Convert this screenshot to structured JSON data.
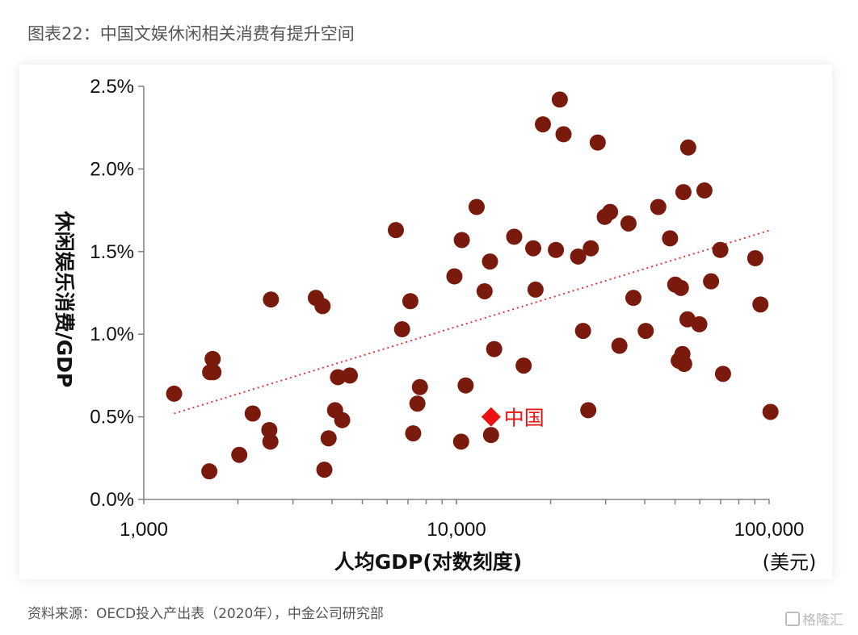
{
  "figure_title": "图表22：中国文娱休闲相关消费有提升空间",
  "source": "资料来源：OECD投入产出表（2020年），中金公司研究部",
  "watermark": "格隆汇",
  "colors": {
    "dot": "#7a1a0c",
    "highlight": "#ee1111",
    "trend": "#e8323c",
    "axis": "#808080"
  },
  "chart_data": {
    "type": "scatter",
    "xlabel": "人均GDP(对数刻度)",
    "xunit": "(美元)",
    "ylabel": "休闲娱乐消费/GDP",
    "xscale": "log",
    "xlim": [
      1000,
      100000
    ],
    "ylim": [
      0,
      2.5
    ],
    "xticks": [
      1000,
      10000,
      100000
    ],
    "xtick_labels": [
      "1,000",
      "10,000",
      "100,000"
    ],
    "yticks": [
      0,
      0.5,
      1.0,
      1.5,
      2.0,
      2.5
    ],
    "ytick_labels": [
      "0.0%",
      "0.5%",
      "1.0%",
      "1.5%",
      "2.0%",
      "2.5%"
    ],
    "trendline": {
      "style": "dotted",
      "from": [
        1250,
        0.52
      ],
      "to": [
        101000,
        1.63
      ]
    },
    "highlight": {
      "label": "中国",
      "x": 12900,
      "y": 0.5
    },
    "points": [
      [
        1250,
        0.64
      ],
      [
        1620,
        0.17
      ],
      [
        1630,
        0.77
      ],
      [
        1660,
        0.85
      ],
      [
        1670,
        0.77
      ],
      [
        2020,
        0.27
      ],
      [
        2230,
        0.52
      ],
      [
        2520,
        0.42
      ],
      [
        2540,
        0.35
      ],
      [
        2550,
        1.21
      ],
      [
        3550,
        1.22
      ],
      [
        3730,
        1.17
      ],
      [
        3780,
        0.18
      ],
      [
        3900,
        0.37
      ],
      [
        4090,
        0.54
      ],
      [
        4180,
        0.74
      ],
      [
        4310,
        0.48
      ],
      [
        4560,
        0.75
      ],
      [
        6400,
        1.63
      ],
      [
        6700,
        1.03
      ],
      [
        7120,
        1.2
      ],
      [
        7270,
        0.4
      ],
      [
        7500,
        0.58
      ],
      [
        7640,
        0.68
      ],
      [
        9850,
        1.35
      ],
      [
        10400,
        1.57
      ],
      [
        10350,
        0.35
      ],
      [
        10700,
        0.69
      ],
      [
        11600,
        1.77
      ],
      [
        12300,
        1.26
      ],
      [
        12800,
        1.44
      ],
      [
        12900,
        0.39
      ],
      [
        13200,
        0.91
      ],
      [
        15300,
        1.59
      ],
      [
        16400,
        0.81
      ],
      [
        17600,
        1.52
      ],
      [
        17900,
        1.27
      ],
      [
        18900,
        2.27
      ],
      [
        20800,
        1.51
      ],
      [
        21400,
        2.42
      ],
      [
        22000,
        2.21
      ],
      [
        24500,
        1.47
      ],
      [
        25400,
        1.02
      ],
      [
        26400,
        0.54
      ],
      [
        26900,
        1.52
      ],
      [
        28300,
        2.16
      ],
      [
        29800,
        1.71
      ],
      [
        31000,
        1.74
      ],
      [
        33200,
        0.93
      ],
      [
        35500,
        1.67
      ],
      [
        36800,
        1.22
      ],
      [
        40300,
        1.02
      ],
      [
        44200,
        1.77
      ],
      [
        48200,
        1.58
      ],
      [
        50100,
        1.3
      ],
      [
        51400,
        0.84
      ],
      [
        52200,
        1.28
      ],
      [
        52800,
        0.88
      ],
      [
        53200,
        1.86
      ],
      [
        53500,
        0.82
      ],
      [
        54800,
        1.09
      ],
      [
        55100,
        2.13
      ],
      [
        59800,
        1.06
      ],
      [
        62100,
        1.87
      ],
      [
        65200,
        1.32
      ],
      [
        69800,
        1.51
      ],
      [
        71200,
        0.76
      ],
      [
        90300,
        1.46
      ],
      [
        93800,
        1.18
      ],
      [
        101000,
        0.53
      ]
    ]
  }
}
